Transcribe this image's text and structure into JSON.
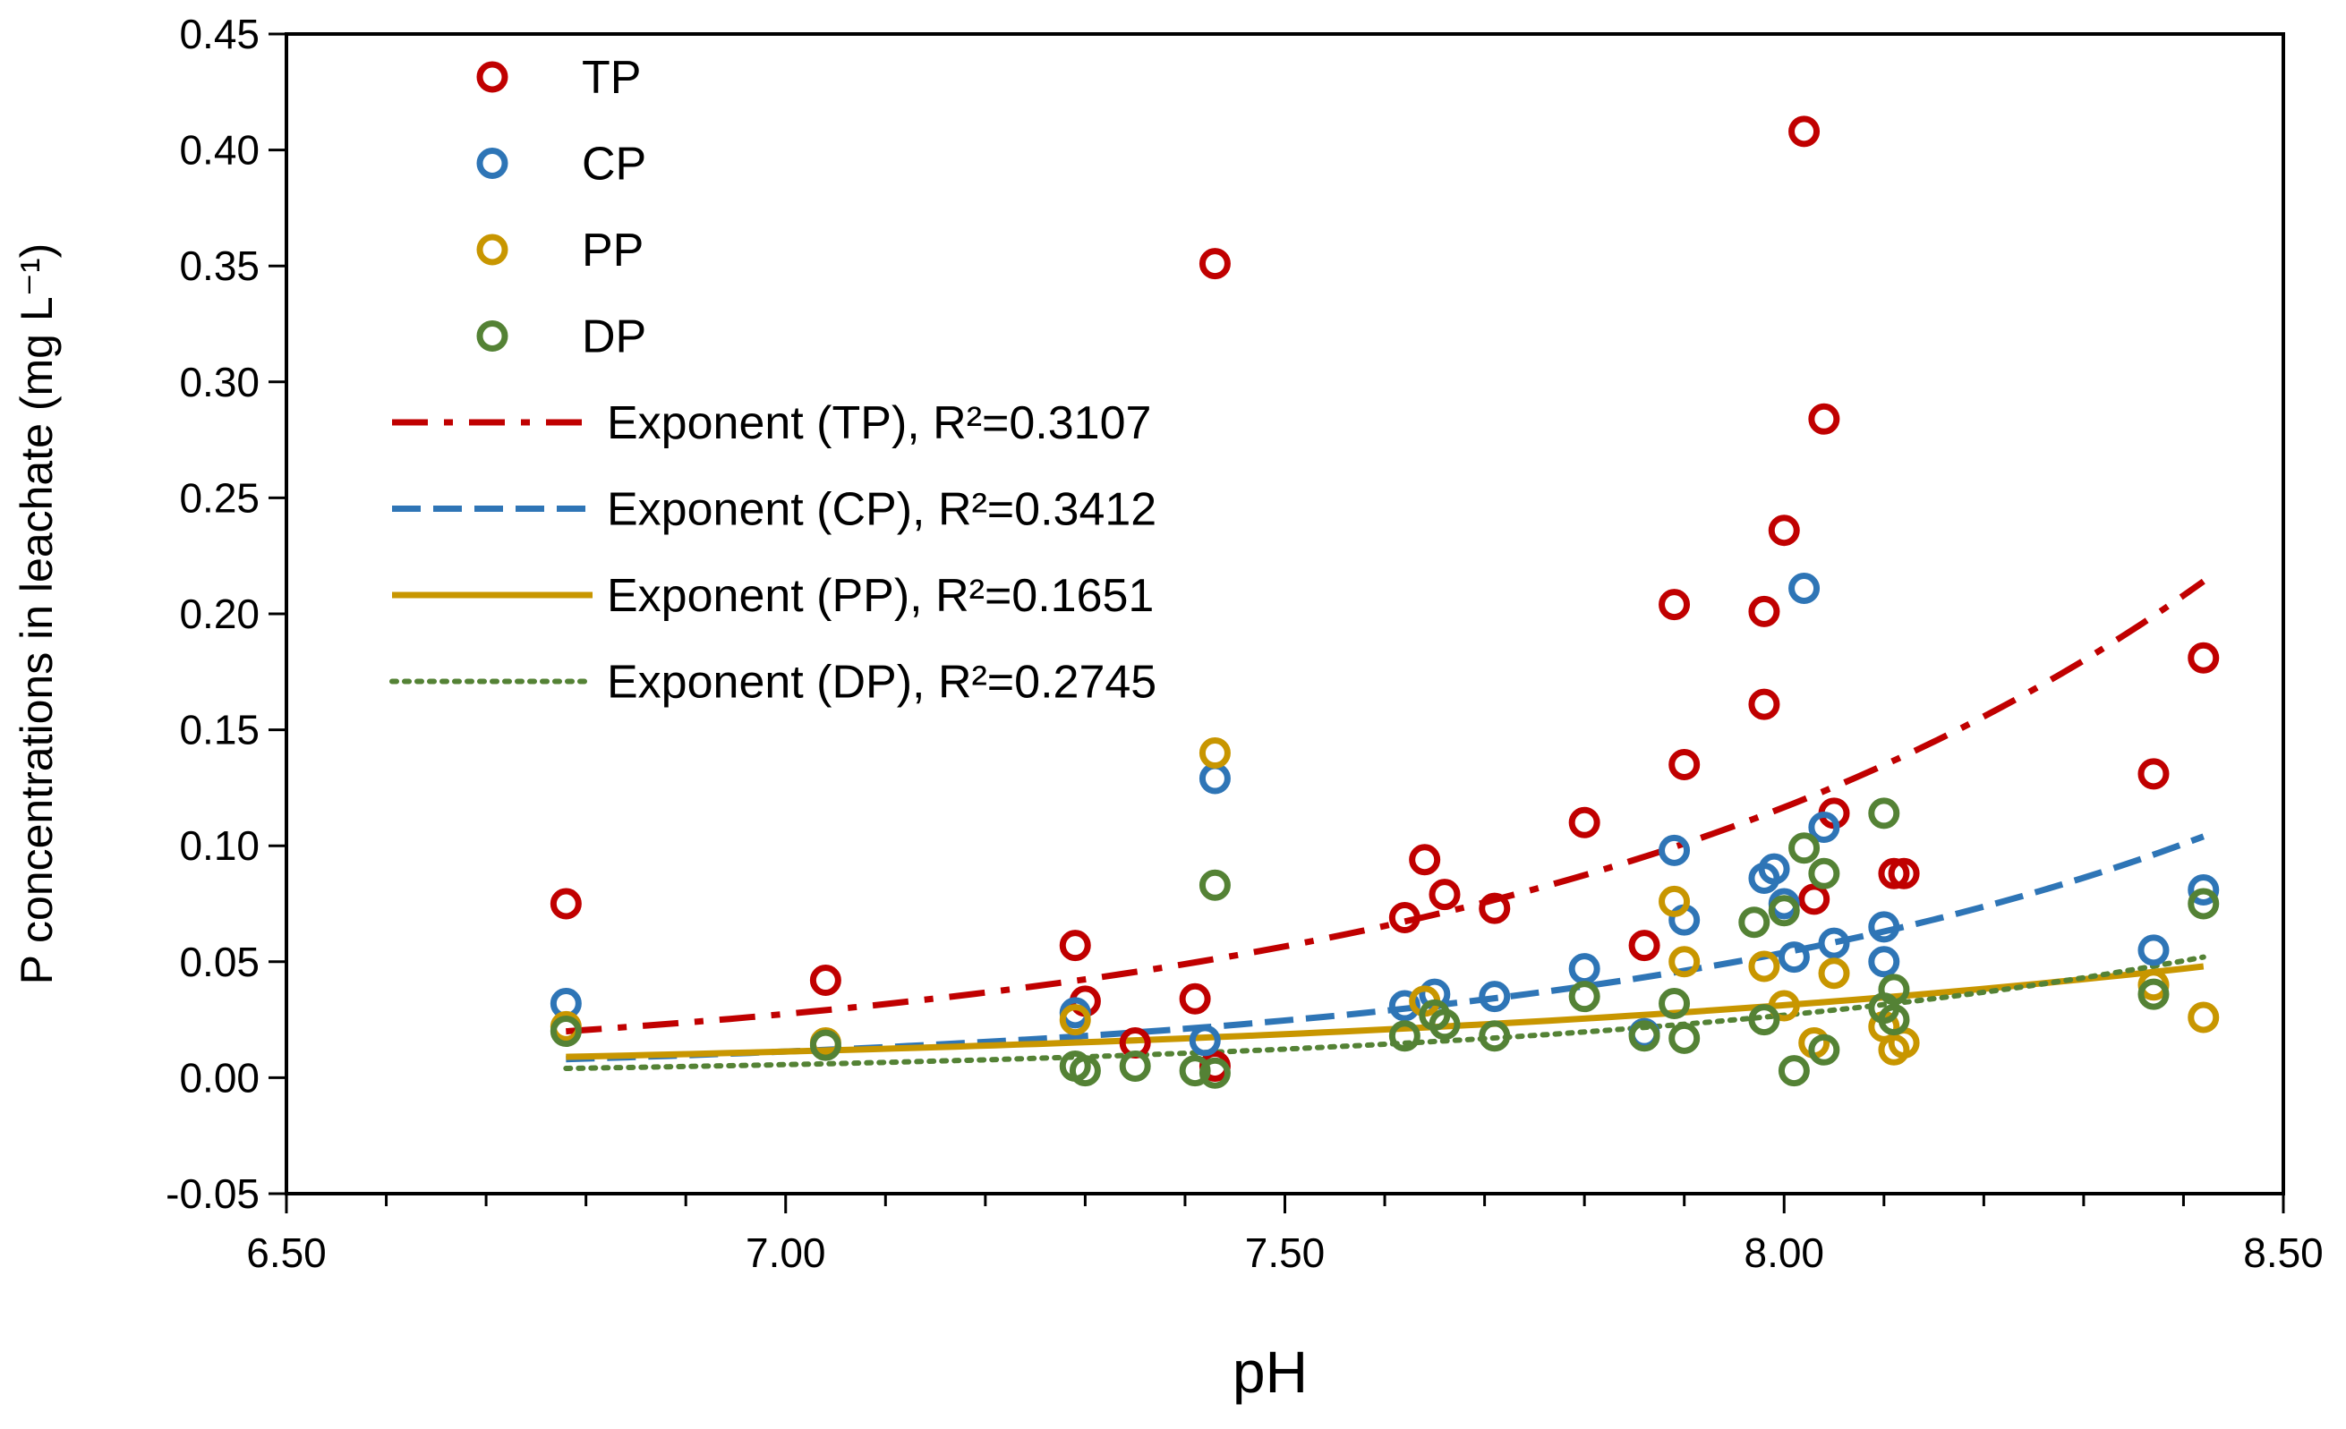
{
  "chart_data": {
    "type": "scatter",
    "title": "",
    "xlabel": "pH",
    "ylabel": "P concentrations in leachate (mg L⁻¹)",
    "xlim": [
      6.5,
      8.5
    ],
    "ylim": [
      -0.05,
      0.45
    ],
    "x_ticks": [
      "6.50",
      "7.00",
      "7.50",
      "8.00",
      "8.50"
    ],
    "y_ticks": [
      "-0.05",
      "0.00",
      "0.05",
      "0.10",
      "0.15",
      "0.20",
      "0.25",
      "0.30",
      "0.35",
      "0.40",
      "0.45"
    ],
    "x_tick_values": [
      6.5,
      7.0,
      7.5,
      8.0,
      8.5
    ],
    "y_tick_values": [
      -0.05,
      0.0,
      0.05,
      0.1,
      0.15,
      0.2,
      0.25,
      0.3,
      0.35,
      0.4,
      0.45
    ],
    "grid": false,
    "legend_position": "top-left",
    "series": [
      {
        "name": "TP",
        "color": "#C00000",
        "points": [
          [
            6.78,
            0.075
          ],
          [
            7.04,
            0.042
          ],
          [
            7.29,
            0.057
          ],
          [
            7.3,
            0.033
          ],
          [
            7.35,
            0.015
          ],
          [
            7.41,
            0.034
          ],
          [
            7.43,
            0.351
          ],
          [
            7.43,
            0.005
          ],
          [
            7.62,
            0.069
          ],
          [
            7.64,
            0.094
          ],
          [
            7.66,
            0.079
          ],
          [
            7.71,
            0.073
          ],
          [
            7.8,
            0.11
          ],
          [
            7.86,
            0.057
          ],
          [
            7.89,
            0.204
          ],
          [
            7.9,
            0.135
          ],
          [
            7.98,
            0.201
          ],
          [
            7.98,
            0.161
          ],
          [
            8.0,
            0.236
          ],
          [
            8.02,
            0.408
          ],
          [
            8.03,
            0.077
          ],
          [
            8.04,
            0.284
          ],
          [
            8.05,
            0.114
          ],
          [
            8.11,
            0.088
          ],
          [
            8.12,
            0.088
          ],
          [
            8.37,
            0.131
          ],
          [
            8.42,
            0.181
          ]
        ]
      },
      {
        "name": "CP",
        "color": "#2E75B6",
        "points": [
          [
            6.78,
            0.032
          ],
          [
            7.29,
            0.028
          ],
          [
            7.43,
            0.129
          ],
          [
            7.42,
            0.016
          ],
          [
            7.62,
            0.031
          ],
          [
            7.65,
            0.036
          ],
          [
            7.71,
            0.035
          ],
          [
            7.8,
            0.047
          ],
          [
            7.86,
            0.019
          ],
          [
            7.89,
            0.098
          ],
          [
            7.9,
            0.068
          ],
          [
            7.98,
            0.086
          ],
          [
            7.99,
            0.09
          ],
          [
            8.0,
            0.075
          ],
          [
            8.01,
            0.052
          ],
          [
            8.02,
            0.211
          ],
          [
            8.04,
            0.108
          ],
          [
            8.05,
            0.058
          ],
          [
            8.1,
            0.065
          ],
          [
            8.1,
            0.05
          ],
          [
            8.37,
            0.055
          ],
          [
            8.42,
            0.081
          ]
        ]
      },
      {
        "name": "PP",
        "color": "#C89600",
        "points": [
          [
            6.78,
            0.022
          ],
          [
            7.04,
            0.015
          ],
          [
            7.29,
            0.025
          ],
          [
            7.43,
            0.14
          ],
          [
            7.64,
            0.033
          ],
          [
            7.89,
            0.076
          ],
          [
            7.9,
            0.05
          ],
          [
            7.98,
            0.048
          ],
          [
            8.0,
            0.031
          ],
          [
            8.03,
            0.015
          ],
          [
            8.05,
            0.045
          ],
          [
            8.1,
            0.022
          ],
          [
            8.11,
            0.012
          ],
          [
            8.12,
            0.015
          ],
          [
            8.37,
            0.04
          ],
          [
            8.42,
            0.026
          ]
        ]
      },
      {
        "name": "DP",
        "color": "#548235",
        "points": [
          [
            6.78,
            0.02
          ],
          [
            7.04,
            0.014
          ],
          [
            7.29,
            0.005
          ],
          [
            7.3,
            0.003
          ],
          [
            7.35,
            0.005
          ],
          [
            7.41,
            0.003
          ],
          [
            7.43,
            0.083
          ],
          [
            7.43,
            0.002
          ],
          [
            7.62,
            0.018
          ],
          [
            7.65,
            0.027
          ],
          [
            7.66,
            0.023
          ],
          [
            7.71,
            0.018
          ],
          [
            7.8,
            0.035
          ],
          [
            7.86,
            0.018
          ],
          [
            7.89,
            0.032
          ],
          [
            7.9,
            0.017
          ],
          [
            7.97,
            0.067
          ],
          [
            7.98,
            0.025
          ],
          [
            8.0,
            0.072
          ],
          [
            8.01,
            0.003
          ],
          [
            8.02,
            0.099
          ],
          [
            8.04,
            0.088
          ],
          [
            8.04,
            0.012
          ],
          [
            8.1,
            0.114
          ],
          [
            8.1,
            0.03
          ],
          [
            8.11,
            0.025
          ],
          [
            8.11,
            0.038
          ],
          [
            8.37,
            0.036
          ],
          [
            8.42,
            0.075
          ]
        ]
      }
    ],
    "trendlines": [
      {
        "name": "TP",
        "label": "Exponent (TP), R²=0.3107",
        "color": "#C00000",
        "style": "dash-dot",
        "x_range": [
          6.78,
          8.42
        ],
        "y_start": 0.02,
        "y_end": 0.214
      },
      {
        "name": "CP",
        "label": "Exponent (CP), R²=0.3412",
        "color": "#2E75B6",
        "style": "dashed",
        "x_range": [
          6.78,
          8.42
        ],
        "y_start": 0.008,
        "y_end": 0.104
      },
      {
        "name": "PP",
        "label": "Exponent (PP), R²=0.1651",
        "color": "#C89600",
        "style": "solid",
        "x_range": [
          6.78,
          8.42
        ],
        "y_start": 0.009,
        "y_end": 0.048
      },
      {
        "name": "DP",
        "label": "Exponent (DP), R²=0.2745",
        "color": "#548235",
        "style": "dotted",
        "x_range": [
          6.78,
          8.42
        ],
        "y_start": 0.004,
        "y_end": 0.052
      }
    ]
  }
}
